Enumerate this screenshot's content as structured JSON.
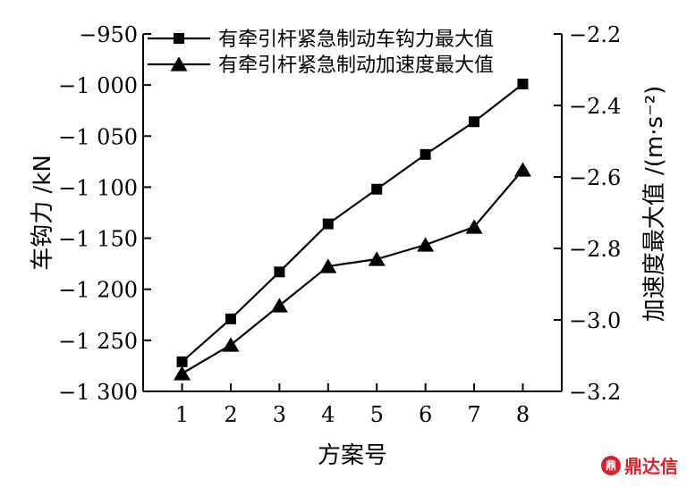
{
  "chart_data": {
    "type": "line",
    "title": "",
    "xlabel": "方案号",
    "ylabel_left": "车钩力 /kN",
    "ylabel_right": "加速度最大值 /(m·s⁻²)",
    "x": [
      1,
      2,
      3,
      4,
      5,
      6,
      7,
      8
    ],
    "x_tick_labels": [
      "1",
      "2",
      "3",
      "4",
      "5",
      "6",
      "7",
      "8"
    ],
    "xlim": [
      0.2,
      8.8
    ],
    "ylim_left": [
      -1300,
      -950
    ],
    "ylim_right": [
      -3.2,
      -2.2
    ],
    "yticks_left": [
      -1300,
      -1250,
      -1200,
      -1150,
      -1100,
      -1050,
      -1000,
      -950
    ],
    "ytick_labels_left": [
      "−1 300",
      "−1 250",
      "−1 200",
      "−1 150",
      "−1 100",
      "−1 050",
      "−1 000",
      "−950"
    ],
    "yticks_right": [
      -3.2,
      -3.0,
      -2.8,
      -2.6,
      -2.4,
      -2.2
    ],
    "ytick_labels_right": [
      "−3.2",
      "−3.0",
      "−2.8",
      "−2.6",
      "−2.4",
      "−2.2"
    ],
    "grid": false,
    "legend_position": "top",
    "series": [
      {
        "name": "有牵引杆紧急制动车钩力最大值",
        "axis": "left",
        "marker": "square",
        "values": [
          -1271,
          -1229,
          -1183,
          -1136,
          -1102,
          -1068,
          -1036,
          -999
        ]
      },
      {
        "name": "有牵引杆紧急制动加速度最大值",
        "axis": "right",
        "marker": "triangle",
        "values": [
          -3.15,
          -3.07,
          -2.96,
          -2.85,
          -2.83,
          -2.79,
          -2.74,
          -2.58
        ]
      }
    ]
  },
  "watermark": {
    "seal": "鼎",
    "text": "鼎达信"
  }
}
